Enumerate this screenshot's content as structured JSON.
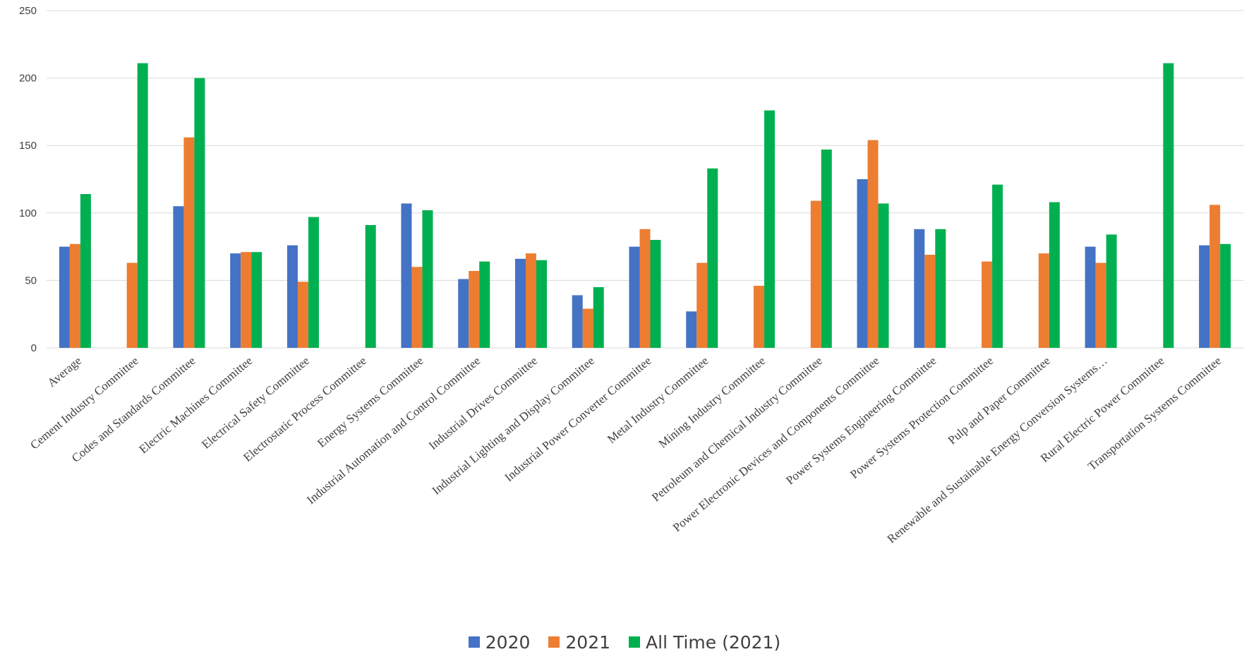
{
  "chart_data": {
    "type": "bar",
    "title": "",
    "xlabel": "",
    "ylabel": "",
    "ylim": [
      0,
      250
    ],
    "yticks": [
      0,
      50,
      100,
      150,
      200,
      250
    ],
    "grid": true,
    "legend_position": "bottom",
    "categories": [
      "Average",
      "Cement Industry Committee",
      "Codes and Standards Committee",
      "Electric Machines Committee",
      "Electrical Safety Committee",
      "Electrostatic Process Committee",
      "Energy Systems Committee",
      "Industrial Automation and Control Committee",
      "Industrial Drives Committee",
      "Industrial Lighting and Display Committee",
      "Industrial Power Converter Committee",
      "Metal Industry Committee",
      "Mining Industry Committee",
      "Petroleum and Chemical Industry Committee",
      "Power Electronic Devices and Components Committee",
      "Power Systems Engineering Committee",
      "Power Systems Protection Committee",
      "Pulp and Paper Committee",
      "Renewable and Sustainable Energy Conversion Systems…",
      "Rural Electric Power Committee",
      "Transportation Systems Committee"
    ],
    "series": [
      {
        "name": "2020",
        "color": "#4472c4",
        "values": [
          75,
          0,
          105,
          70,
          76,
          0,
          107,
          51,
          66,
          39,
          75,
          27,
          0,
          0,
          125,
          88,
          0,
          0,
          75,
          0,
          76
        ]
      },
      {
        "name": "2021",
        "color": "#ed7d31",
        "values": [
          77,
          63,
          156,
          71,
          49,
          0,
          60,
          57,
          70,
          29,
          88,
          63,
          46,
          109,
          154,
          69,
          64,
          70,
          63,
          0,
          106
        ]
      },
      {
        "name": "All Time (2021)",
        "color": "#00b050",
        "values": [
          114,
          211,
          200,
          71,
          97,
          91,
          102,
          64,
          65,
          45,
          80,
          133,
          176,
          147,
          107,
          88,
          121,
          108,
          84,
          211,
          77
        ]
      }
    ]
  }
}
